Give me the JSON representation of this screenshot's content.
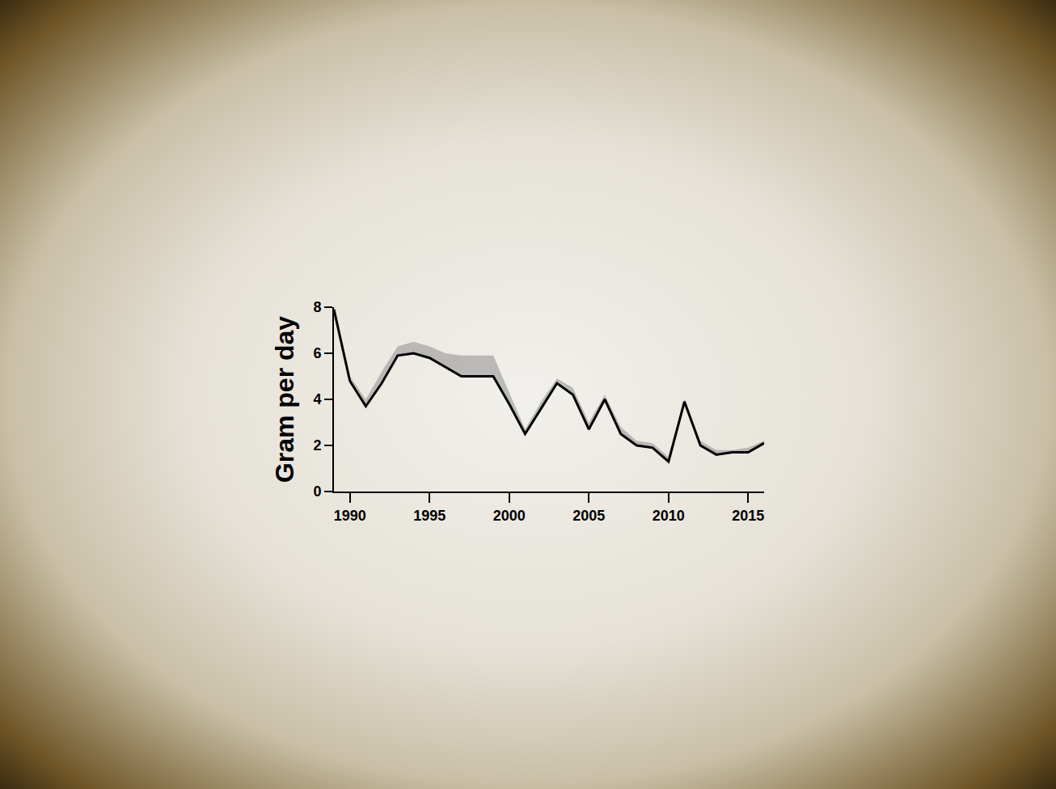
{
  "chart_data": {
    "type": "line",
    "y_label": "Gram per day",
    "x": [
      1989,
      1990,
      1991,
      1992,
      1993,
      1994,
      1995,
      1996,
      1997,
      1998,
      1999,
      2000,
      2001,
      2002,
      2003,
      2004,
      2005,
      2006,
      2007,
      2008,
      2009,
      2010,
      2011,
      2012,
      2013,
      2014,
      2015,
      2016
    ],
    "values": [
      7.9,
      4.8,
      3.7,
      4.7,
      5.9,
      6.0,
      5.8,
      5.4,
      5.0,
      5.0,
      5.0,
      3.8,
      2.5,
      3.6,
      4.7,
      4.2,
      2.7,
      4.0,
      2.5,
      2.0,
      1.9,
      1.3,
      3.9,
      2.0,
      1.6,
      1.7,
      1.7,
      2.1
    ],
    "upper": [
      8.0,
      5.0,
      4.0,
      5.2,
      6.3,
      6.5,
      6.3,
      6.0,
      5.9,
      5.9,
      5.9,
      4.3,
      2.7,
      3.9,
      4.9,
      4.5,
      3.0,
      4.2,
      2.8,
      2.2,
      2.1,
      1.5,
      4.0,
      2.2,
      1.8,
      1.8,
      1.9,
      2.2
    ],
    "color": "#000000",
    "xlim": [
      1989,
      2016
    ],
    "ylim": [
      0,
      8
    ],
    "xticks": [
      1990,
      1995,
      2000,
      2005,
      2010,
      2015
    ],
    "yticks": [
      0,
      2,
      4,
      6,
      8
    ],
    "grid": false
  }
}
